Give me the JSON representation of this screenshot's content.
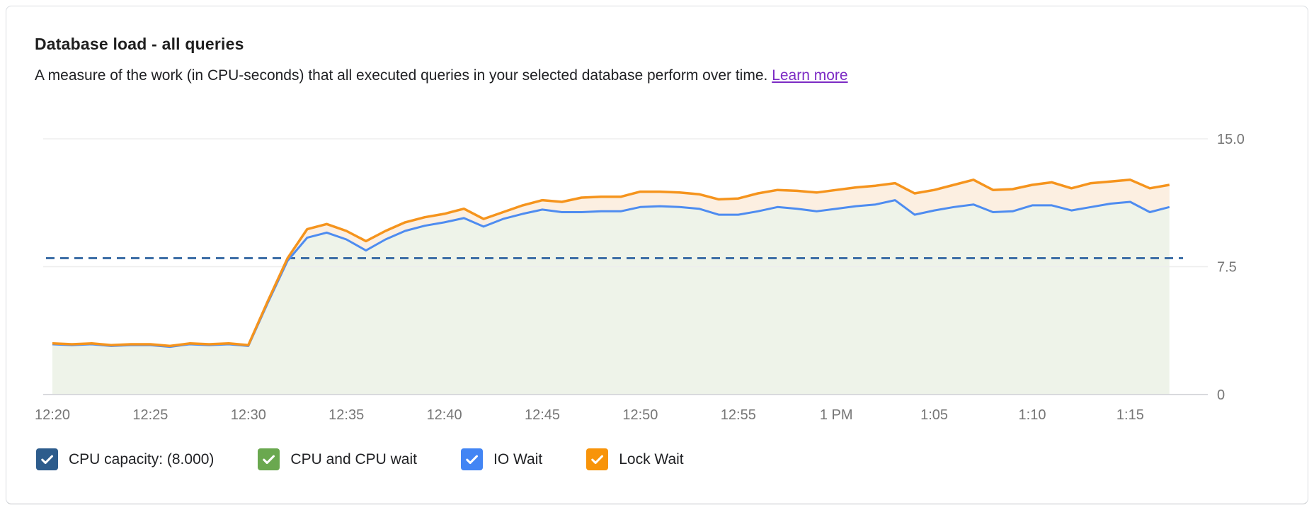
{
  "card": {
    "title": "Database load - all queries",
    "subtitle": "A measure of the work (in CPU-seconds) that all executed queries in your selected database perform over time.",
    "learn_more_label": "Learn more",
    "learn_more_color": "#7c2bc4"
  },
  "legend": {
    "items": [
      {
        "label": "CPU capacity: (8.000)",
        "color": "#2d5c8c",
        "checked": true
      },
      {
        "label": "CPU and CPU wait",
        "color": "#6aa84f",
        "checked": true
      },
      {
        "label": "IO Wait",
        "color": "#4285f4",
        "checked": true
      },
      {
        "label": "Lock Wait",
        "color": "#f8940a",
        "checked": true
      }
    ]
  },
  "chart_data": {
    "type": "area",
    "stacked": true,
    "title": "Database load - all queries",
    "xlabel": "",
    "ylabel": "",
    "ylim": [
      0,
      15
    ],
    "grid": true,
    "legend_position": "bottom",
    "y_ticks": [
      {
        "value": 0,
        "label": "0"
      },
      {
        "value": 7.5,
        "label": "7.5"
      },
      {
        "value": 15,
        "label": "15.0"
      }
    ],
    "x_ticks": [
      {
        "minute": 0,
        "label": "12:20"
      },
      {
        "minute": 5,
        "label": "12:25"
      },
      {
        "minute": 10,
        "label": "12:30"
      },
      {
        "minute": 15,
        "label": "12:35"
      },
      {
        "minute": 20,
        "label": "12:40"
      },
      {
        "minute": 25,
        "label": "12:45"
      },
      {
        "minute": 30,
        "label": "12:50"
      },
      {
        "minute": 35,
        "label": "12:55"
      },
      {
        "minute": 40,
        "label": "1 PM"
      },
      {
        "minute": 45,
        "label": "1:05"
      },
      {
        "minute": 50,
        "label": "1:10"
      },
      {
        "minute": 55,
        "label": "1:15"
      }
    ],
    "cpu_capacity": 8.0,
    "capacity_line_color": "#3d6ea6",
    "minutes_from_start": [
      0,
      1,
      2,
      3,
      4,
      5,
      6,
      7,
      8,
      9,
      10,
      11,
      12,
      13,
      14,
      15,
      16,
      17,
      18,
      19,
      20,
      21,
      22,
      23,
      24,
      25,
      26,
      27,
      28,
      29,
      30,
      31,
      32,
      33,
      34,
      35,
      36,
      37,
      38,
      39,
      40,
      41,
      42,
      43,
      44,
      45,
      46,
      47,
      48,
      49,
      50,
      51,
      52,
      53,
      54,
      55,
      56,
      57
    ],
    "series": [
      {
        "name": "CPU and CPU wait + IO Wait (blue stack top)",
        "color": "#4e8cf0",
        "fill_below": "#eef3e9",
        "values": [
          2.95,
          2.9,
          2.95,
          2.85,
          2.9,
          2.9,
          2.8,
          2.95,
          2.9,
          2.95,
          2.85,
          5.4,
          7.85,
          9.2,
          9.5,
          9.1,
          8.45,
          9.1,
          9.6,
          9.9,
          10.1,
          10.35,
          9.85,
          10.3,
          10.6,
          10.85,
          10.7,
          10.7,
          10.75,
          10.75,
          11.0,
          11.05,
          11.0,
          10.9,
          10.55,
          10.55,
          10.75,
          11.0,
          10.9,
          10.75,
          10.9,
          11.05,
          11.15,
          11.4,
          10.55,
          10.8,
          11.0,
          11.15,
          10.7,
          10.75,
          11.1,
          11.1,
          10.8,
          11.0,
          11.2,
          11.3,
          10.7,
          11.0
        ]
      },
      {
        "name": "Total load incl. Lock Wait (orange stack top)",
        "color": "#f5941d",
        "fill_below": "#fcefe1",
        "values": [
          3.0,
          2.95,
          3.0,
          2.9,
          2.95,
          2.95,
          2.85,
          3.0,
          2.95,
          3.0,
          2.9,
          5.5,
          8.0,
          9.7,
          10.0,
          9.6,
          9.0,
          9.6,
          10.1,
          10.4,
          10.6,
          10.9,
          10.3,
          10.7,
          11.1,
          11.4,
          11.3,
          11.55,
          11.6,
          11.6,
          11.9,
          11.9,
          11.85,
          11.75,
          11.45,
          11.5,
          11.8,
          12.0,
          11.95,
          11.85,
          12.0,
          12.15,
          12.25,
          12.4,
          11.8,
          12.0,
          12.3,
          12.6,
          12.0,
          12.05,
          12.3,
          12.45,
          12.1,
          12.4,
          12.5,
          12.6,
          12.1,
          12.3
        ]
      }
    ]
  }
}
